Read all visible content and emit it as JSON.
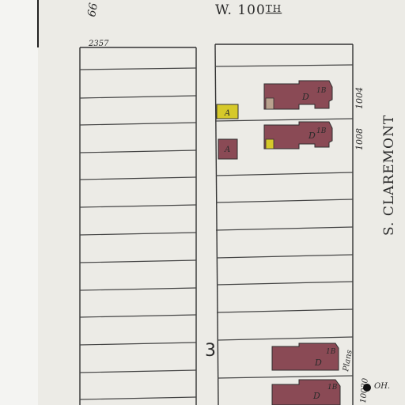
{
  "map": {
    "north_street": {
      "name": "W. 100",
      "suffix": "TH"
    },
    "east_street": "S. CLAREMONT",
    "block_number": "3",
    "corner_lot_number": "2357",
    "corner_number": "66",
    "left_address": "10030",
    "plans_note": "Plans",
    "house_numbers": [
      "1004",
      "1008"
    ],
    "outbuildings": [
      {
        "code": "A",
        "colour": "yellow"
      },
      {
        "code": "A",
        "colour": "#8a4a55"
      }
    ],
    "dwellings": [
      {
        "code": "D",
        "stories": "1B"
      },
      {
        "code": "D",
        "stories": "1B"
      },
      {
        "code": "D",
        "stories": "1B"
      },
      {
        "code": "D",
        "stories": "1B"
      }
    ],
    "hydrant_label": "OH.",
    "colors": {
      "frame_dwelling": "#8a4a55",
      "brick_shed": "#d6c92a",
      "paper": "#ecebe6"
    }
  }
}
